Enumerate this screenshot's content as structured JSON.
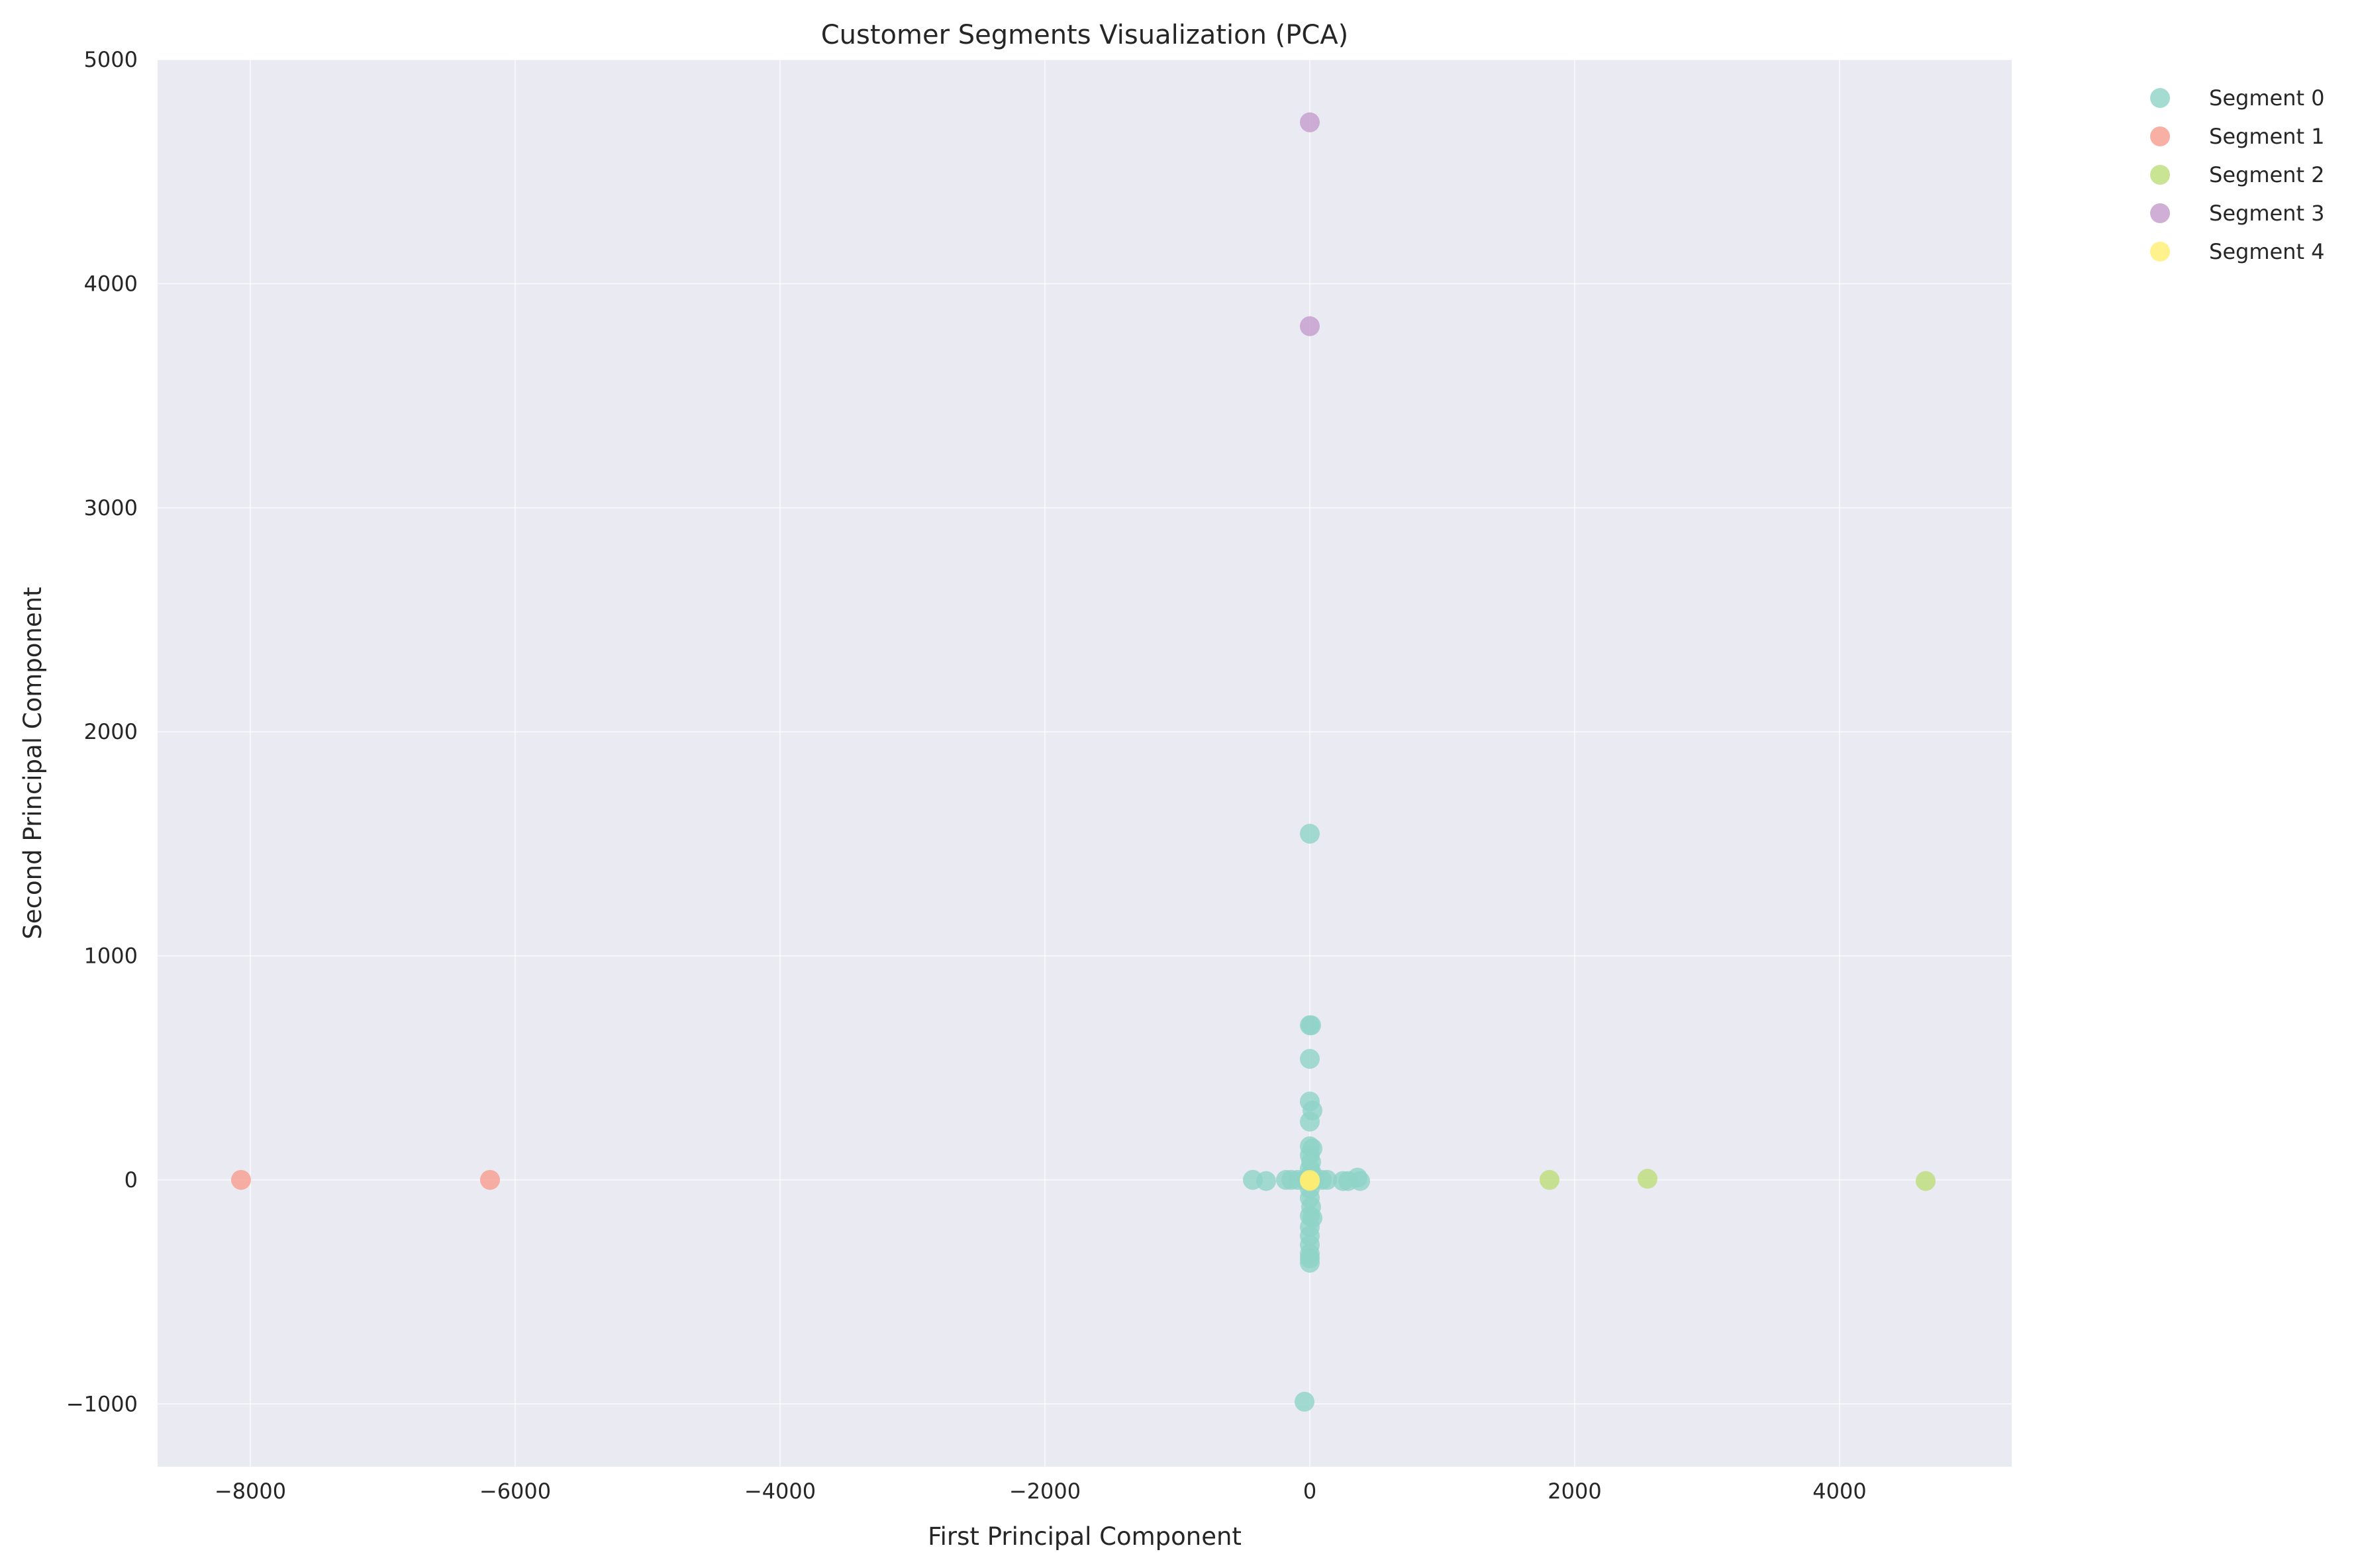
{
  "chart_data": {
    "type": "scatter",
    "title": "Customer Segments Visualization (PCA)",
    "xlabel": "First Principal Component",
    "ylabel": "Second Principal Component",
    "xlim": [
      -8700,
      5300
    ],
    "ylim": [
      -1280,
      5000
    ],
    "x_ticks": [
      -8000,
      -6000,
      -4000,
      -2000,
      0,
      2000,
      4000
    ],
    "y_ticks": [
      -1000,
      0,
      1000,
      2000,
      3000,
      4000,
      5000
    ],
    "grid": true,
    "legend_position": "outside-top-right",
    "series": [
      {
        "name": "Segment 0",
        "color": "#8ed3c7",
        "points": [
          [
            0,
            1545
          ],
          [
            0,
            690
          ],
          [
            10,
            690
          ],
          [
            0,
            540
          ],
          [
            0,
            350
          ],
          [
            20,
            310
          ],
          [
            0,
            260
          ],
          [
            0,
            150
          ],
          [
            20,
            140
          ],
          [
            0,
            110
          ],
          [
            10,
            80
          ],
          [
            0,
            50
          ],
          [
            15,
            30
          ],
          [
            -430,
            0
          ],
          [
            -330,
            -5
          ],
          [
            -180,
            0
          ],
          [
            -140,
            0
          ],
          [
            -90,
            0
          ],
          [
            -40,
            0
          ],
          [
            40,
            0
          ],
          [
            90,
            0
          ],
          [
            130,
            0
          ],
          [
            250,
            -5
          ],
          [
            290,
            -5
          ],
          [
            360,
            10
          ],
          [
            380,
            -5
          ],
          [
            0,
            -40
          ],
          [
            0,
            -80
          ],
          [
            10,
            -120
          ],
          [
            0,
            -160
          ],
          [
            20,
            -170
          ],
          [
            0,
            -210
          ],
          [
            0,
            -250
          ],
          [
            0,
            -290
          ],
          [
            0,
            -330
          ],
          [
            0,
            -350
          ],
          [
            0,
            -370
          ],
          [
            -40,
            -990
          ]
        ]
      },
      {
        "name": "Segment 1",
        "color": "#f69c8e",
        "points": [
          [
            -8070,
            0
          ],
          [
            -6190,
            0
          ]
        ]
      },
      {
        "name": "Segment 2",
        "color": "#bcdd78",
        "points": [
          [
            1810,
            0
          ],
          [
            2550,
            5
          ],
          [
            4650,
            -5
          ]
        ]
      },
      {
        "name": "Segment 3",
        "color": "#c49bcc",
        "points": [
          [
            0,
            4720
          ],
          [
            0,
            3810
          ]
        ]
      },
      {
        "name": "Segment 4",
        "color": "#ffed6f",
        "points": [
          [
            0,
            0
          ],
          [
            0,
            -5
          ]
        ]
      }
    ]
  }
}
